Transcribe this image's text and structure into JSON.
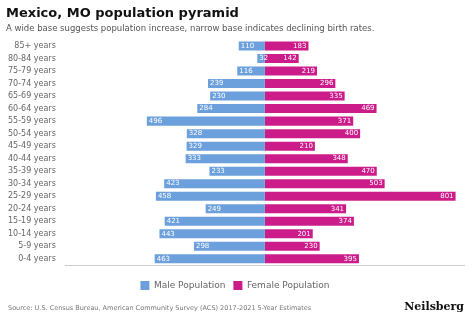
{
  "chart_data": {
    "type": "bar",
    "orientation": "horizontal",
    "title": "Mexico, MO population pyramid",
    "subtitle": "A wide base suggests population increase, narrow base indicates declining birth rates.",
    "categories": [
      "0-4 years",
      "5-9 years",
      "10-14 years",
      "15-19 years",
      "20-24 years",
      "25-29 years",
      "30-34 years",
      "35-39 years",
      "40-44 years",
      "45-49 years",
      "50-54 years",
      "55-59 years",
      "60-64 years",
      "65-69 years",
      "70-74 years",
      "75-79 years",
      "80-84 years",
      "85+ years"
    ],
    "series": [
      {
        "name": "Male Population",
        "color": "#6ca0dc",
        "values": [
          463,
          298,
          443,
          421,
          249,
          458,
          423,
          233,
          333,
          329,
          328,
          496,
          284,
          230,
          239,
          116,
          32,
          110
        ]
      },
      {
        "name": "Female Population",
        "color": "#cc1c8a",
        "values": [
          395,
          230,
          201,
          374,
          341,
          801,
          503,
          470,
          348,
          210,
          400,
          371,
          469,
          335,
          296,
          219,
          142,
          183
        ]
      }
    ],
    "xlim": [
      -836.4,
      836.4
    ],
    "grid": false,
    "legend": "bottom",
    "data_labels": true,
    "tick_labels": "y",
    "annotations": [
      "Source: U.S. Census Bureau, American Community Survey (ACS) 2017-2021 5-Year Estimates",
      "Neilsberg"
    ]
  }
}
